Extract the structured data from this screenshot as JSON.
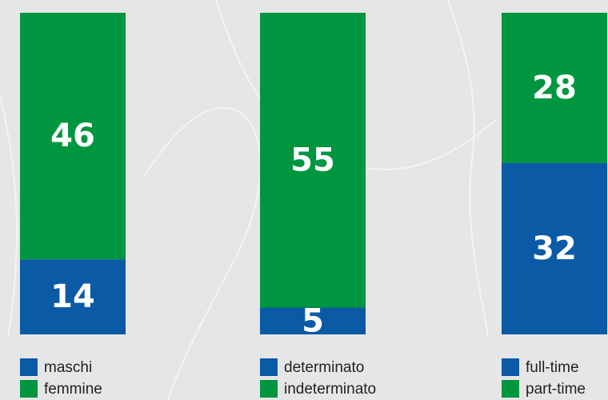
{
  "chart_data": [
    {
      "type": "stacked-bar",
      "series": [
        {
          "name": "maschi",
          "color": "#0b5aa6",
          "values": [
            14
          ]
        },
        {
          "name": "femmine",
          "color": "#009640",
          "values": [
            46
          ]
        }
      ]
    },
    {
      "type": "stacked-bar",
      "series": [
        {
          "name": "determinato",
          "color": "#0b5aa6",
          "values": [
            5
          ]
        },
        {
          "name": "indeterminato",
          "color": "#009640",
          "values": [
            55
          ]
        }
      ]
    },
    {
      "type": "stacked-bar",
      "series": [
        {
          "name": "full-time",
          "color": "#0b5aa6",
          "values": [
            32
          ]
        },
        {
          "name": "part-time",
          "color": "#009640",
          "values": [
            28
          ]
        }
      ]
    }
  ]
}
